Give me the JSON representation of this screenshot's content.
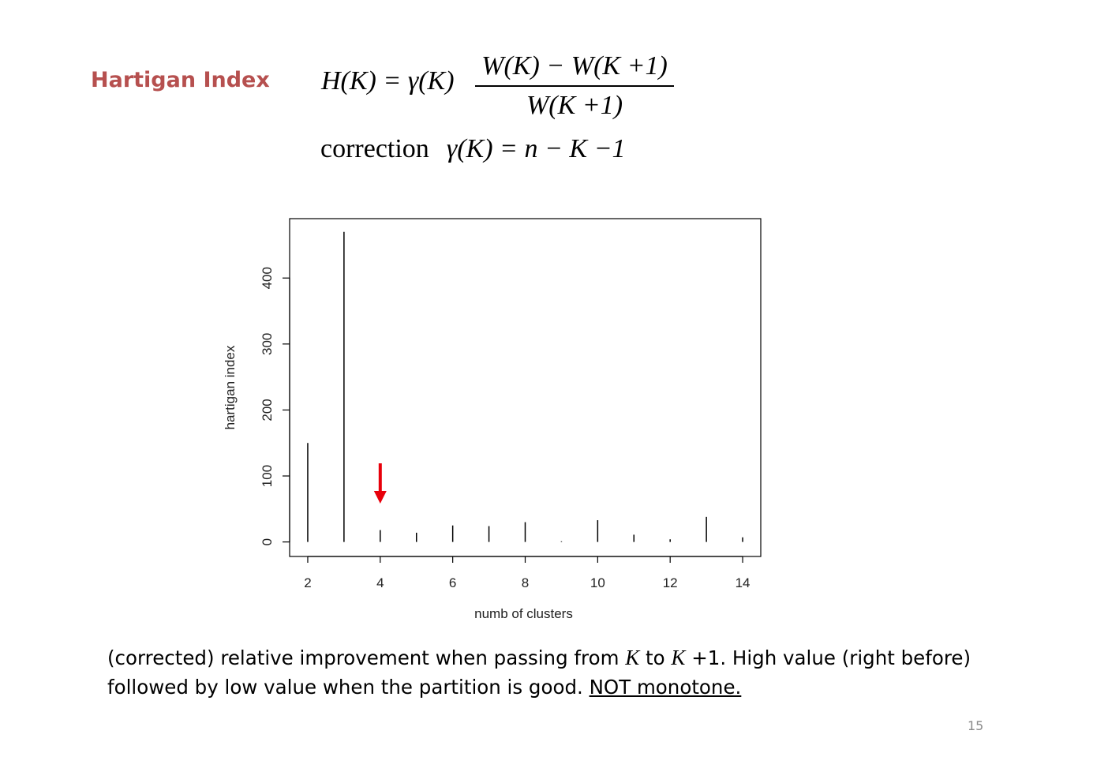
{
  "slide": {
    "title": "Hartigan Index",
    "page_number": "15"
  },
  "formula": {
    "lhs": "H(K) = γ(K)",
    "numerator": "W(K) − W(K +1)",
    "denominator": "W(K +1)",
    "correction_word": "correction",
    "correction_expr": "γ(K) = n − K −1"
  },
  "chart_data": {
    "type": "bar",
    "style": "vertical spikes (type='h')",
    "x": [
      2,
      3,
      4,
      5,
      6,
      7,
      8,
      9,
      10,
      11,
      12,
      13,
      14
    ],
    "values": [
      150,
      470,
      18,
      14,
      25,
      24,
      30,
      1,
      33,
      11,
      4,
      38,
      7
    ],
    "xlabel": "numb of clusters",
    "ylabel": "hartigan index",
    "xlim": [
      1.5,
      14.5
    ],
    "ylim": [
      -22,
      490
    ],
    "xticks": [
      2,
      4,
      6,
      8,
      10,
      12,
      14
    ],
    "yticks": [
      0,
      100,
      200,
      300,
      400
    ],
    "grid": false,
    "annotation": {
      "type": "arrow",
      "color": "#e8000b",
      "points_to_x": 4
    }
  },
  "footnote": {
    "part1": "(corrected) relative improvement when passing from ",
    "k1": "K",
    "part2": " to ",
    "k2": "K",
    "part3": " +1. High value (right before) followed by low value when the partition is good. ",
    "emphasis": "NOT monotone."
  }
}
